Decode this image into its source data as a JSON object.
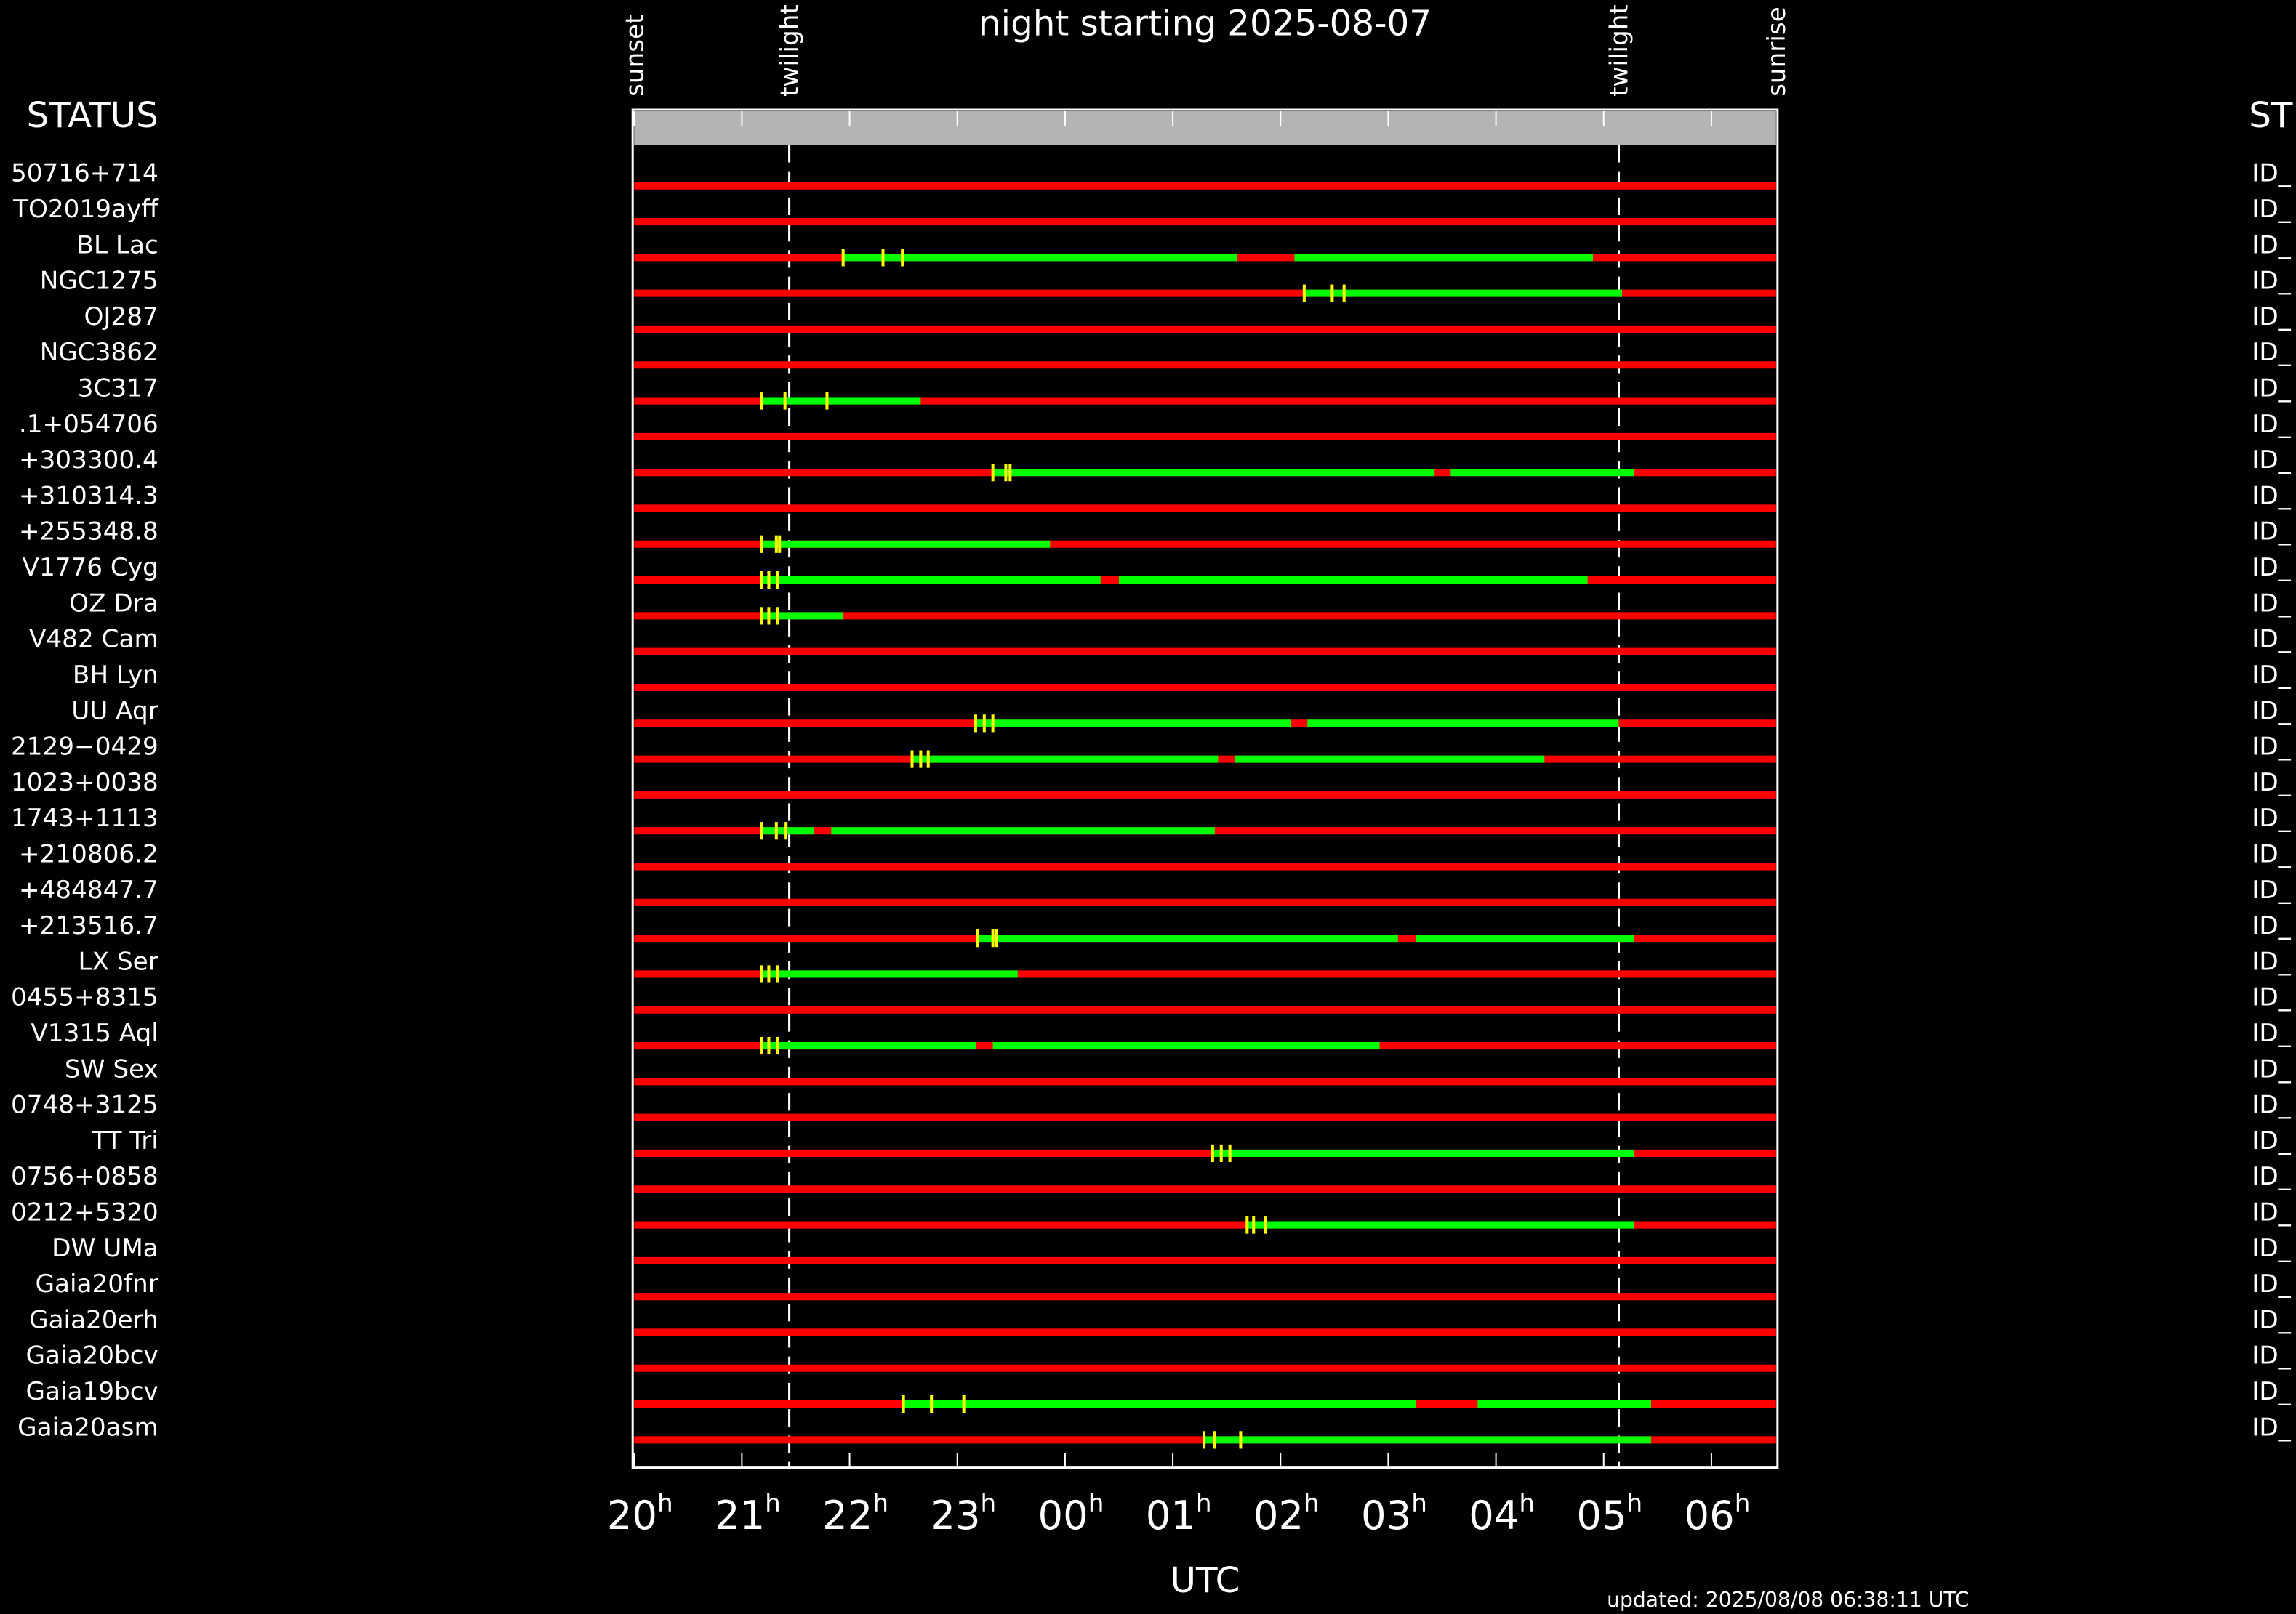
{
  "chart_data": {
    "type": "visibility",
    "title": "night starting 2025-08-07",
    "left_header": "STATUS",
    "right_header": "ST",
    "xlabel": "UTC",
    "footer": "updated: 2025/08/08 06:38:11 UTC",
    "xlim": [
      20,
      30.6
    ],
    "xticks": [
      20,
      21,
      22,
      23,
      {
        "value": 24,
        "label": "00"
      },
      {
        "value": 25,
        "label": "01"
      },
      {
        "value": 26,
        "label": "02"
      },
      {
        "value": 27,
        "label": "03"
      },
      {
        "value": 28,
        "label": "04"
      },
      {
        "value": 29,
        "label": "05"
      },
      {
        "value": 30,
        "label": "06"
      }
    ],
    "tick_unit": "h",
    "events": [
      {
        "name": "sunset",
        "time": 20.0
      },
      {
        "name": "twilight",
        "time": 21.44,
        "line": true
      },
      {
        "name": "twilight",
        "time": 29.14,
        "line": true
      },
      {
        "name": "sunrise",
        "time": 30.6
      }
    ],
    "colors": {
      "unobservable": "#ff0000",
      "window": "#00ff00",
      "marker": "#ffff00",
      "header_bar": "#b4b4b4"
    },
    "rows": [
      {
        "name": "50716+714",
        "status": "ID_",
        "windows": [],
        "markers": []
      },
      {
        "name": "TO2019ayff",
        "status": "ID_",
        "windows": [],
        "markers": []
      },
      {
        "name": "BL Lac",
        "status": "ID_",
        "windows": [
          [
            21.94,
            25.6
          ],
          [
            26.13,
            28.9
          ]
        ],
        "markers": [
          21.94,
          22.31,
          22.49
        ]
      },
      {
        "name": "NGC1275",
        "status": "ID_",
        "windows": [
          [
            26.22,
            29.17
          ]
        ],
        "markers": [
          26.22,
          26.48,
          26.59
        ]
      },
      {
        "name": "OJ287",
        "status": "ID_",
        "windows": [],
        "markers": []
      },
      {
        "name": "NGC3862",
        "status": "ID_",
        "windows": [],
        "markers": []
      },
      {
        "name": "3C317",
        "status": "ID_",
        "windows": [
          [
            21.18,
            22.66
          ]
        ],
        "markers": [
          21.18,
          21.4,
          21.79
        ]
      },
      {
        "name": ".1+054706",
        "status": "ID_",
        "windows": [],
        "markers": []
      },
      {
        "name": "+303300.4",
        "status": "ID_",
        "windows": [
          [
            23.33,
            27.43
          ],
          [
            27.58,
            29.28
          ]
        ],
        "markers": [
          23.33,
          23.45,
          23.49
        ]
      },
      {
        "name": "+310314.3",
        "status": "ID_",
        "windows": [],
        "markers": []
      },
      {
        "name": "+255348.8",
        "status": "ID_",
        "windows": [
          [
            21.18,
            23.86
          ]
        ],
        "markers": [
          21.18,
          21.32,
          21.35
        ]
      },
      {
        "name": "V1776 Cyg",
        "status": "ID_",
        "windows": [
          [
            21.18,
            24.33
          ],
          [
            24.5,
            28.85
          ]
        ],
        "markers": [
          21.18,
          21.25,
          21.33
        ]
      },
      {
        "name": "OZ Dra",
        "status": "ID_",
        "windows": [
          [
            21.18,
            21.94
          ]
        ],
        "markers": [
          21.18,
          21.25,
          21.33
        ]
      },
      {
        "name": "V482 Cam",
        "status": "ID_",
        "windows": [],
        "markers": []
      },
      {
        "name": "BH Lyn",
        "status": "ID_",
        "windows": [],
        "markers": []
      },
      {
        "name": "UU Aqr",
        "status": "ID_",
        "windows": [
          [
            23.17,
            26.1
          ],
          [
            26.25,
            29.14
          ]
        ],
        "markers": [
          23.17,
          23.25,
          23.33
        ]
      },
      {
        "name": "2129−0429",
        "status": "ID_",
        "windows": [
          [
            22.58,
            25.42
          ],
          [
            25.58,
            28.45
          ]
        ],
        "markers": [
          22.58,
          22.66,
          22.73
        ]
      },
      {
        "name": "1023+0038",
        "status": "ID_",
        "windows": [],
        "markers": []
      },
      {
        "name": "1743+1113",
        "status": "ID_",
        "windows": [
          [
            21.18,
            21.67
          ],
          [
            21.83,
            25.39
          ]
        ],
        "markers": [
          21.18,
          21.32,
          21.41
        ]
      },
      {
        "name": "+210806.2",
        "status": "ID_",
        "windows": [],
        "markers": []
      },
      {
        "name": "+484847.7",
        "status": "ID_",
        "windows": [],
        "markers": []
      },
      {
        "name": "+213516.7",
        "status": "ID_",
        "windows": [
          [
            23.19,
            27.09
          ],
          [
            27.26,
            29.28
          ]
        ],
        "markers": [
          23.19,
          23.33,
          23.36
        ]
      },
      {
        "name": "LX Ser",
        "status": "ID_",
        "windows": [
          [
            21.18,
            23.56
          ]
        ],
        "markers": [
          21.18,
          21.25,
          21.33
        ]
      },
      {
        "name": "0455+8315",
        "status": "ID_",
        "windows": [],
        "markers": []
      },
      {
        "name": "V1315 Aql",
        "status": "ID_",
        "windows": [
          [
            21.18,
            23.17
          ],
          [
            23.33,
            26.92
          ]
        ],
        "markers": [
          21.18,
          21.25,
          21.33
        ]
      },
      {
        "name": "SW Sex",
        "status": "ID_",
        "windows": [],
        "markers": []
      },
      {
        "name": "0748+3125",
        "status": "ID_",
        "windows": [],
        "markers": []
      },
      {
        "name": "TT Tri",
        "status": "ID_",
        "windows": [
          [
            25.37,
            29.28
          ]
        ],
        "markers": [
          25.37,
          25.45,
          25.53
        ]
      },
      {
        "name": "0756+0858",
        "status": "ID_",
        "windows": [],
        "markers": []
      },
      {
        "name": "0212+5320",
        "status": "ID_",
        "windows": [
          [
            25.69,
            29.28
          ]
        ],
        "markers": [
          25.69,
          25.75,
          25.86
        ]
      },
      {
        "name": "DW UMa",
        "status": "ID_",
        "windows": [],
        "markers": []
      },
      {
        "name": "Gaia20fnr",
        "status": "ID_",
        "windows": [],
        "markers": []
      },
      {
        "name": "Gaia20erh",
        "status": "ID_",
        "windows": [],
        "markers": []
      },
      {
        "name": "Gaia20bcv",
        "status": "ID_",
        "windows": [],
        "markers": []
      },
      {
        "name": "Gaia19bcv",
        "status": "ID_",
        "windows": [
          [
            22.5,
            27.26
          ],
          [
            27.83,
            29.44
          ]
        ],
        "markers": [
          22.5,
          22.76,
          23.06
        ]
      },
      {
        "name": "Gaia20asm",
        "status": "ID_",
        "windows": [
          [
            25.29,
            29.44
          ]
        ],
        "markers": [
          25.29,
          25.39,
          25.63
        ]
      }
    ]
  }
}
